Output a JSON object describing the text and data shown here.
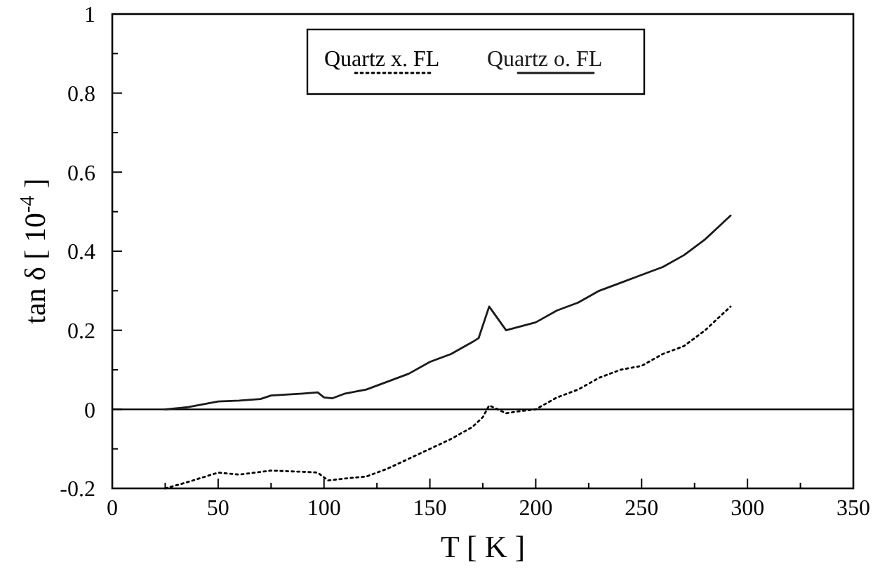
{
  "chart_data": {
    "type": "line",
    "xlabel": "T [ K ]",
    "ylabel": "tan δ [ 10$^{-4}$ ]",
    "xlim": [
      0,
      350
    ],
    "ylim": [
      -0.2,
      1
    ],
    "xticks": [
      0,
      {
        "value": 25,
        "label": null
      },
      50,
      {
        "value": 75,
        "label": null
      },
      100,
      {
        "value": 125,
        "label": null
      },
      150,
      {
        "value": 175,
        "label": null
      },
      200,
      {
        "value": 225,
        "label": null
      },
      250,
      {
        "value": 275,
        "label": null
      },
      300,
      {
        "value": 325,
        "label": null
      },
      350
    ],
    "yticks": [
      -0.2,
      {
        "value": -0.1,
        "label": null
      },
      0,
      {
        "value": 0.1,
        "label": null
      },
      0.2,
      {
        "value": 0.3,
        "label": null
      },
      0.4,
      {
        "value": 0.5,
        "label": null
      },
      0.6,
      {
        "value": 0.7,
        "label": null
      },
      0.8,
      {
        "value": 0.9,
        "label": null
      },
      1
    ],
    "ref_lines": [
      {
        "axis": "y",
        "value": 0,
        "color": "#000000"
      }
    ],
    "legend": "top",
    "grid": false,
    "series": [
      {
        "name": "Quartz x. FL",
        "color": "#000000",
        "line_style": "dotted",
        "x": [
          25,
          35,
          50,
          60,
          75,
          90,
          97,
          102,
          110,
          120,
          130,
          140,
          150,
          160,
          170,
          175,
          178,
          182,
          186,
          192,
          200,
          210,
          220,
          230,
          240,
          250,
          260,
          270,
          280,
          288,
          292
        ],
        "values": [
          -0.2,
          -0.185,
          -0.16,
          -0.165,
          -0.155,
          -0.158,
          -0.16,
          -0.18,
          -0.175,
          -0.17,
          -0.15,
          -0.125,
          -0.1,
          -0.075,
          -0.045,
          -0.02,
          0.01,
          0,
          -0.01,
          -0.005,
          0,
          0.03,
          0.05,
          0.08,
          0.1,
          0.11,
          0.14,
          0.16,
          0.2,
          0.24,
          0.26
        ]
      },
      {
        "name": "Quartz o. FL",
        "color": "#1a1a1a",
        "line_style": "solid",
        "x": [
          25,
          35,
          50,
          60,
          70,
          75,
          90,
          97,
          100,
          104,
          110,
          120,
          130,
          140,
          150,
          160,
          170,
          173,
          178,
          186,
          200,
          210,
          220,
          230,
          240,
          250,
          260,
          270,
          280,
          288,
          292
        ],
        "values": [
          0,
          0.005,
          0.02,
          0.022,
          0.026,
          0.035,
          0.04,
          0.043,
          0.03,
          0.028,
          0.04,
          0.05,
          0.07,
          0.09,
          0.12,
          0.14,
          0.17,
          0.18,
          0.26,
          0.2,
          0.22,
          0.25,
          0.27,
          0.3,
          0.32,
          0.34,
          0.36,
          0.39,
          0.43,
          0.47,
          0.49
        ]
      }
    ]
  }
}
